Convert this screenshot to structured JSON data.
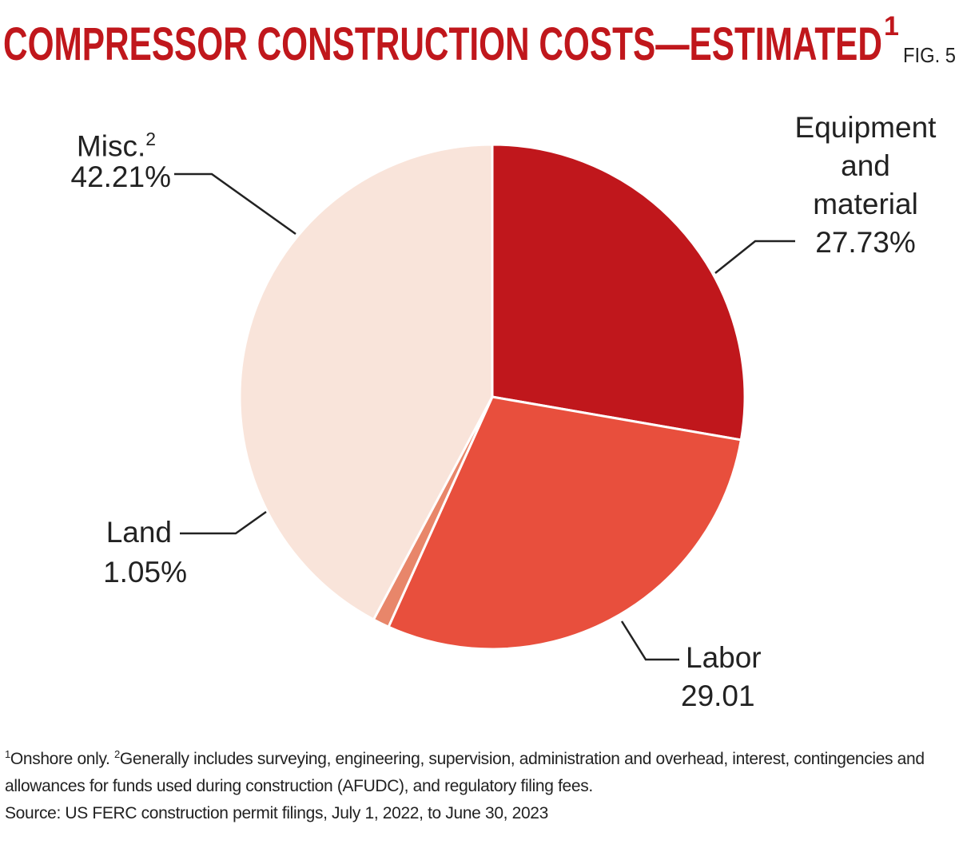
{
  "title": "COMPRESSOR CONSTRUCTION COSTS—ESTIMATED",
  "title_note": "1",
  "figure": "FIG. 5",
  "chart_data": {
    "type": "pie",
    "categories": [
      "Equipment and material",
      "Labor",
      "Land",
      "Misc."
    ],
    "category_notes": [
      null,
      null,
      null,
      "2"
    ],
    "values": [
      27.73,
      29.01,
      1.05,
      42.21
    ],
    "value_labels": [
      "27.73%",
      "29.01",
      "1.05%",
      "42.21%"
    ],
    "colors": [
      "#c0171c",
      "#e84f3d",
      "#e8866a",
      "#f9e4da"
    ]
  },
  "footnotes": {
    "marker_1": "1",
    "text_1": "Onshore only.",
    "marker_2": "2",
    "text_2": "Generally includes surveying, engineering, supervision, administration and overhead, interest, contingencies and allowances for funds used during construction (AFUDC), and regulatory filing fees.",
    "source": "Source: US FERC construction permit filings, July 1, 2022, to June 30, 2023"
  }
}
